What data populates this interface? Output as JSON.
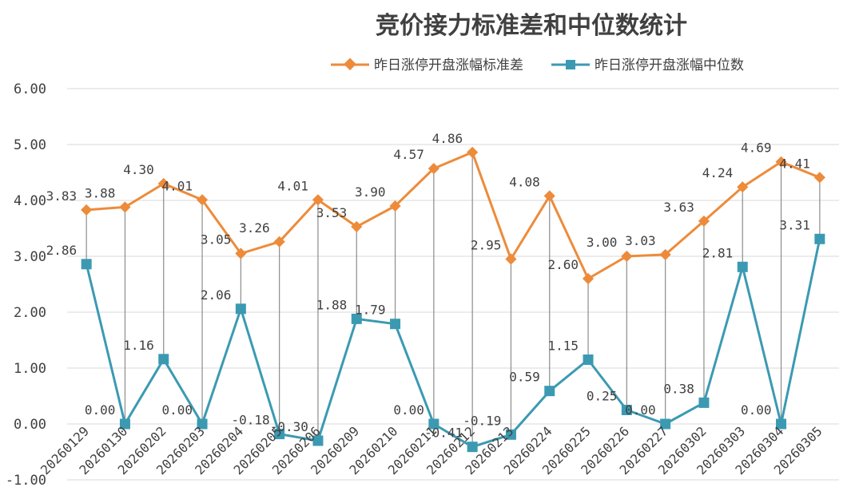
{
  "chart_data": {
    "type": "line",
    "title": "竞价接力标准差和中位数统计",
    "categories": [
      "20260129",
      "20260130",
      "20260202",
      "20260203",
      "20260204",
      "20260205",
      "20260206",
      "20260209",
      "20260210",
      "20260211",
      "20260212",
      "20260213",
      "20260224",
      "20260225",
      "20260226",
      "20260227",
      "20260302",
      "20260303",
      "20260304",
      "20260305"
    ],
    "series": [
      {
        "name": "昨日涨停开盘涨幅标准差",
        "color": "#ED8B3A",
        "marker": "diamond",
        "values": [
          3.83,
          3.88,
          4.3,
          4.01,
          3.05,
          3.26,
          4.01,
          3.53,
          3.9,
          4.57,
          4.86,
          2.95,
          4.08,
          2.6,
          3.0,
          3.03,
          3.63,
          4.24,
          4.69,
          4.41
        ],
        "labels": [
          "3.83",
          "3.88",
          "4.30",
          "4.01",
          "3.05",
          "3.26",
          "4.01",
          "3.53",
          "3.90",
          "4.57",
          "4.86",
          "2.95",
          "4.08",
          "2.60",
          "3.00",
          "3.03",
          "3.63",
          "4.24",
          "4.69",
          "4.41"
        ]
      },
      {
        "name": "昨日涨停开盘涨幅中位数",
        "color": "#3B9AB2",
        "marker": "square",
        "values": [
          2.86,
          0.0,
          1.16,
          0.0,
          2.06,
          -0.18,
          -0.3,
          1.88,
          1.79,
          0.0,
          -0.41,
          -0.19,
          0.59,
          1.15,
          0.25,
          0.0,
          0.38,
          2.81,
          0.0,
          3.31
        ],
        "labels": [
          "2.86",
          "0.00",
          "1.16",
          "0.00",
          "2.06",
          "-0.18",
          "-0.30",
          "1.88",
          "1.79",
          "0.00",
          "-0.41",
          "-0.19",
          "0.59",
          "1.15",
          "0.25",
          "0.00",
          "0.38",
          "2.81",
          "0.00",
          "3.31"
        ]
      }
    ],
    "yticks": [
      "6.00",
      "5.00",
      "4.00",
      "3.00",
      "2.00",
      "1.00",
      "0.00",
      "-1.00"
    ],
    "ylim": [
      -1,
      6
    ],
    "grid": true,
    "drop_lines": true,
    "legend_position": "top"
  }
}
